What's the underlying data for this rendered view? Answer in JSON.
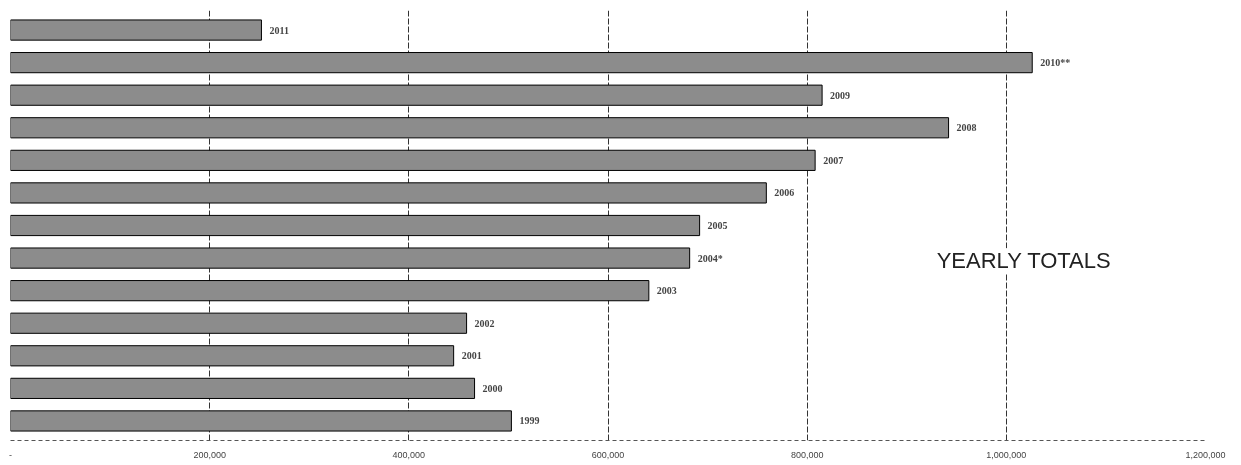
{
  "chart_data": {
    "type": "bar",
    "orientation": "horizontal",
    "categories": [
      "2011",
      "2010**",
      "2009",
      "2008",
      "2007",
      "2006",
      "2005",
      "2004*",
      "2003",
      "2002",
      "2001",
      "2000",
      "1999"
    ],
    "values": [
      252000,
      1026000,
      815000,
      942000,
      808000,
      759000,
      692000,
      682000,
      641000,
      458000,
      445000,
      466000,
      503000
    ],
    "color": "#8c8c8c",
    "xlim": [
      0,
      1200000
    ],
    "xticks": [
      {
        "value": 0,
        "label": "-"
      },
      {
        "value": 200000,
        "label": "200,000"
      },
      {
        "value": 400000,
        "label": "400,000"
      },
      {
        "value": 600000,
        "label": "600,000"
      },
      {
        "value": 800000,
        "label": "800,000"
      },
      {
        "value": 1000000,
        "label": "1,000,000"
      },
      {
        "value": 1200000,
        "label": "1,200,000"
      }
    ],
    "tick_labels": "x",
    "grid": "x",
    "annotations": [
      "YEARLY TOTALS"
    ]
  }
}
